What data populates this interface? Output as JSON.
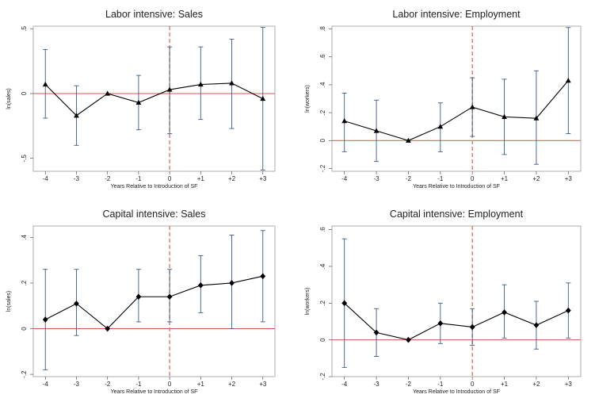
{
  "chart_data": [
    {
      "type": "line",
      "title": "Labor intensive: Sales",
      "xlabel": "Years Relative to Introduction of SF",
      "ylabel": "ln(sales)",
      "categories": [
        "-4",
        "-3",
        "-2",
        "-1",
        "0",
        "+1",
        "+2",
        "+3"
      ],
      "yticks": [
        -0.5,
        0,
        0.5
      ],
      "ytick_labels": [
        "-.5",
        "0",
        ".5"
      ],
      "ylim": [
        -0.6,
        0.52
      ],
      "marker": "triangle",
      "reference_y": 0,
      "event_x": "0",
      "values": [
        0.07,
        -0.17,
        0.0,
        -0.07,
        0.03,
        0.07,
        0.08,
        -0.04
      ],
      "ci_low": [
        -0.19,
        -0.4,
        0.0,
        -0.28,
        -0.31,
        -0.2,
        -0.27,
        -0.59
      ],
      "ci_high": [
        0.34,
        0.06,
        0.0,
        0.14,
        0.36,
        0.36,
        0.42,
        0.51
      ]
    },
    {
      "type": "line",
      "title": "Labor intensive: Employment",
      "xlabel": "Years Relative to Introduction of SF",
      "ylabel": "ln(workers)",
      "categories": [
        "-4",
        "-3",
        "-2",
        "-1",
        "0",
        "+1",
        "+2",
        "+3"
      ],
      "yticks": [
        -0.2,
        0,
        0.2,
        0.4,
        0.6,
        0.8
      ],
      "ytick_labels": [
        "-.2",
        "0",
        ".2",
        ".4",
        ".6",
        ".8"
      ],
      "ylim": [
        -0.22,
        0.82
      ],
      "marker": "triangle",
      "reference_y": 0,
      "event_x": "0",
      "values": [
        0.14,
        0.07,
        0.0,
        0.1,
        0.24,
        0.17,
        0.16,
        0.43
      ],
      "ci_low": [
        -0.08,
        -0.15,
        0.0,
        -0.08,
        0.03,
        -0.1,
        -0.17,
        0.05
      ],
      "ci_high": [
        0.34,
        0.29,
        0.0,
        0.27,
        0.45,
        0.44,
        0.5,
        0.81
      ]
    },
    {
      "type": "line",
      "title": "Capital intensive: Sales",
      "xlabel": "Years Relative to Introduction of SF",
      "ylabel": "ln(sales)",
      "categories": [
        "-4",
        "-3",
        "-2",
        "-1",
        "0",
        "+1",
        "+2",
        "+3"
      ],
      "yticks": [
        -0.2,
        0,
        0.2,
        0.4
      ],
      "ytick_labels": [
        "-.2",
        "0",
        ".2",
        ".4"
      ],
      "ylim": [
        -0.21,
        0.45
      ],
      "marker": "diamond",
      "reference_y": 0,
      "event_x": "0",
      "values": [
        0.04,
        0.11,
        0.0,
        0.14,
        0.14,
        0.19,
        0.2,
        0.23
      ],
      "ci_low": [
        -0.18,
        -0.03,
        0.0,
        0.03,
        0.03,
        0.07,
        0.0,
        0.03
      ],
      "ci_high": [
        0.26,
        0.26,
        0.0,
        0.26,
        0.26,
        0.32,
        0.41,
        0.43
      ]
    },
    {
      "type": "line",
      "title": "Capital intensive: Employment",
      "xlabel": "Years Relative to Introduction of SF",
      "ylabel": "ln(workers)",
      "categories": [
        "-4",
        "-3",
        "-2",
        "-1",
        "0",
        "+1",
        "+2",
        "+3"
      ],
      "yticks": [
        -0.2,
        0,
        0.2,
        0.4,
        0.6
      ],
      "ytick_labels": [
        "-.2",
        "0",
        ".2",
        ".4",
        ".6"
      ],
      "ylim": [
        -0.2,
        0.62
      ],
      "marker": "diamond",
      "reference_y": 0,
      "event_x": "0",
      "values": [
        0.2,
        0.04,
        0.0,
        0.09,
        0.07,
        0.15,
        0.08,
        0.16
      ],
      "ci_low": [
        -0.15,
        -0.09,
        0.0,
        -0.02,
        -0.03,
        0.01,
        -0.05,
        0.01
      ],
      "ci_high": [
        0.55,
        0.17,
        0.0,
        0.2,
        0.17,
        0.3,
        0.21,
        0.31
      ]
    }
  ],
  "colors": {
    "line": "#000000",
    "ci": "#3d5a85",
    "reference": "#d9534f",
    "event": "#e07a5f",
    "frame": "#999999"
  }
}
